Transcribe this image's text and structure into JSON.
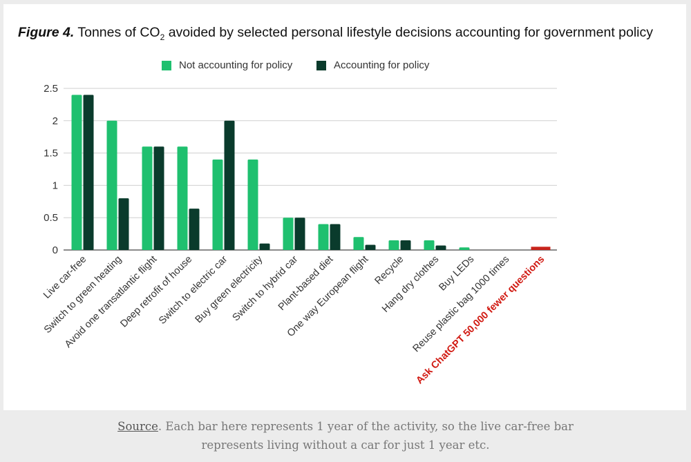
{
  "title": {
    "figure_label": "Figure 4.",
    "text_before_sub": "Tonnes of CO",
    "subscript": "2",
    "text_after_sub": " avoided by selected personal lifestyle decisions accounting for government policy"
  },
  "caption": {
    "source_link": "Source",
    "line1_rest": ". Each bar here represents 1 year of the activity, so the live car-free bar",
    "line2": "represents living without a car for just 1 year etc."
  },
  "chart_data": {
    "type": "bar",
    "ylim": [
      0,
      2.5
    ],
    "yticks": [
      "0",
      "0.5",
      "1",
      "1.5",
      "2",
      "2.5"
    ],
    "grid": true,
    "legend_position": "top",
    "categories": [
      "Live car-free",
      "Switch to green heating",
      "Avoid one transatlantic flight",
      "Deep retrofit of house",
      "Switch to electric car",
      "Buy green electricity",
      "Switch to hybrid car",
      "Plant-based diet",
      "One way European flight",
      "Recycle",
      "Hang dry clothes",
      "Buy LEDs",
      "Reuse plastic bag 1000 times",
      "Ask ChatGPT 50,000 fewer questions"
    ],
    "highlight_category": "Ask ChatGPT 50,000 fewer questions",
    "series": [
      {
        "name": "Not accounting for policy",
        "color": "#1fc06f",
        "values": [
          2.4,
          2.0,
          1.6,
          1.6,
          1.4,
          1.4,
          0.5,
          0.4,
          0.2,
          0.15,
          0.15,
          0.04,
          0.0,
          0.0
        ]
      },
      {
        "name": "Accounting for policy",
        "color": "#0a3b2c",
        "values": [
          2.4,
          0.8,
          1.6,
          0.64,
          2.0,
          0.1,
          0.5,
          0.4,
          0.08,
          0.15,
          0.07,
          0.0,
          0.0,
          0.0
        ]
      }
    ],
    "highlight_bar": {
      "value": 0.05,
      "color": "#c8241c"
    },
    "highlight_label_color": "#d11a12"
  }
}
